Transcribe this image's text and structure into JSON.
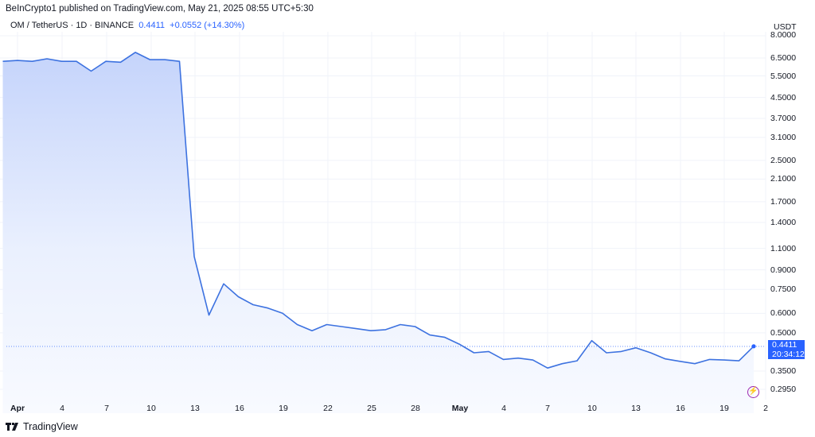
{
  "header": {
    "published": "BeInCrypto1 published on TradingView.com, May 21, 2025 08:55 UTC+5:30",
    "symbol": "OM / TetherUS · 1D · BINANCE",
    "last_price": "0.4411",
    "change": "+0.0552 (+14.30%)"
  },
  "axis": {
    "unit": "USDT",
    "y_ticks": [
      "8.0000",
      "6.5000",
      "5.5000",
      "4.5000",
      "3.7000",
      "3.1000",
      "2.5000",
      "2.1000",
      "1.7000",
      "1.4000",
      "1.1000",
      "0.9000",
      "0.7500",
      "0.6000",
      "0.5000",
      "0.3500",
      "0.2950"
    ],
    "x_ticks": [
      "Apr",
      "4",
      "7",
      "10",
      "13",
      "16",
      "19",
      "22",
      "25",
      "28",
      "May",
      "4",
      "7",
      "10",
      "13",
      "16",
      "19",
      "2"
    ]
  },
  "price_tag": {
    "price": "0.4411",
    "countdown": "20:34:12"
  },
  "footer": {
    "brand": "TradingView"
  },
  "colors": {
    "line": "#3d72e0",
    "accent": "#2962ff",
    "bolt": "#9c27b0"
  },
  "chart_data": {
    "type": "area",
    "title": "OM / TetherUS · 1D · BINANCE",
    "xlabel": "",
    "ylabel": "USDT",
    "yscale": "log",
    "ylim": [
      0.27,
      8.3
    ],
    "grid": true,
    "x": [
      "Mar 31",
      "Apr 1",
      "Apr 2",
      "Apr 3",
      "Apr 4",
      "Apr 5",
      "Apr 6",
      "Apr 7",
      "Apr 8",
      "Apr 9",
      "Apr 10",
      "Apr 11",
      "Apr 12",
      "Apr 13",
      "Apr 14",
      "Apr 15",
      "Apr 16",
      "Apr 17",
      "Apr 18",
      "Apr 19",
      "Apr 20",
      "Apr 21",
      "Apr 22",
      "Apr 23",
      "Apr 24",
      "Apr 25",
      "Apr 26",
      "Apr 27",
      "Apr 28",
      "Apr 29",
      "Apr 30",
      "May 1",
      "May 2",
      "May 3",
      "May 4",
      "May 5",
      "May 6",
      "May 7",
      "May 8",
      "May 9",
      "May 10",
      "May 11",
      "May 12",
      "May 13",
      "May 14",
      "May 15",
      "May 16",
      "May 17",
      "May 18",
      "May 19",
      "May 20",
      "May 21"
    ],
    "values": [
      6.3,
      6.35,
      6.3,
      6.45,
      6.3,
      6.3,
      5.75,
      6.3,
      6.25,
      6.85,
      6.4,
      6.4,
      6.3,
      1.02,
      0.59,
      0.79,
      0.7,
      0.65,
      0.63,
      0.6,
      0.54,
      0.51,
      0.54,
      0.53,
      0.52,
      0.51,
      0.515,
      0.54,
      0.53,
      0.49,
      0.48,
      0.45,
      0.415,
      0.42,
      0.39,
      0.395,
      0.388,
      0.36,
      0.375,
      0.385,
      0.465,
      0.415,
      0.42,
      0.435,
      0.415,
      0.392,
      0.383,
      0.375,
      0.39,
      0.388,
      0.385,
      0.4411
    ]
  }
}
